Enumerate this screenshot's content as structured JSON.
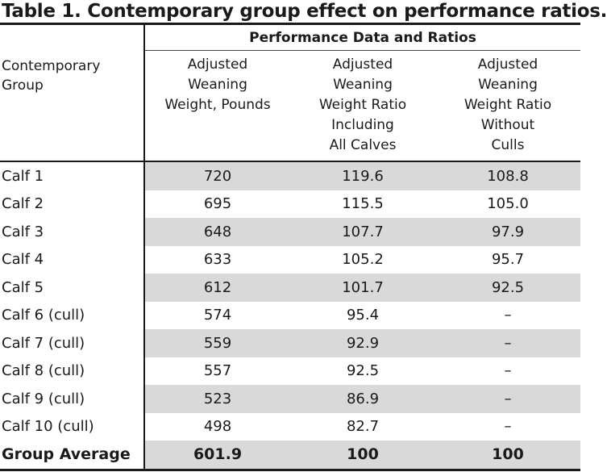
{
  "title": "Table 1. Contemporary group effect on performance ratios.",
  "group_header": "Performance Data and Ratios",
  "row_header": [
    "Contemporary",
    "Group"
  ],
  "columns": [
    {
      "lines": [
        "Adjusted",
        "Weaning",
        "Weight, Pounds"
      ]
    },
    {
      "lines": [
        "Adjusted",
        "Weaning",
        "Weight Ratio",
        "Including",
        "All Calves"
      ]
    },
    {
      "lines": [
        "Adjusted",
        "Weaning",
        "Weight Ratio",
        "Without",
        "Culls"
      ]
    }
  ],
  "rows": [
    {
      "label": "Calf 1",
      "values": [
        "720",
        "119.6",
        "108.8"
      ],
      "shaded": true
    },
    {
      "label": "Calf 2",
      "values": [
        "695",
        "115.5",
        "105.0"
      ],
      "shaded": false
    },
    {
      "label": "Calf 3",
      "values": [
        "648",
        "107.7",
        "97.9"
      ],
      "shaded": true
    },
    {
      "label": "Calf 4",
      "values": [
        "633",
        "105.2",
        "95.7"
      ],
      "shaded": false
    },
    {
      "label": "Calf 5",
      "values": [
        "612",
        "101.7",
        "92.5"
      ],
      "shaded": true
    },
    {
      "label": "Calf 6 (cull)",
      "values": [
        "574",
        "95.4",
        "–"
      ],
      "shaded": false
    },
    {
      "label": "Calf 7 (cull)",
      "values": [
        "559",
        "92.9",
        "–"
      ],
      "shaded": true
    },
    {
      "label": "Calf 8 (cull)",
      "values": [
        "557",
        "92.5",
        "–"
      ],
      "shaded": false
    },
    {
      "label": "Calf 9 (cull)",
      "values": [
        "523",
        "86.9",
        "–"
      ],
      "shaded": true
    },
    {
      "label": "Calf 10 (cull)",
      "values": [
        "498",
        "82.7",
        "–"
      ],
      "shaded": false
    },
    {
      "label": "Group Average",
      "values": [
        "601.9",
        "100",
        "100"
      ],
      "shaded": true,
      "total": true
    }
  ]
}
